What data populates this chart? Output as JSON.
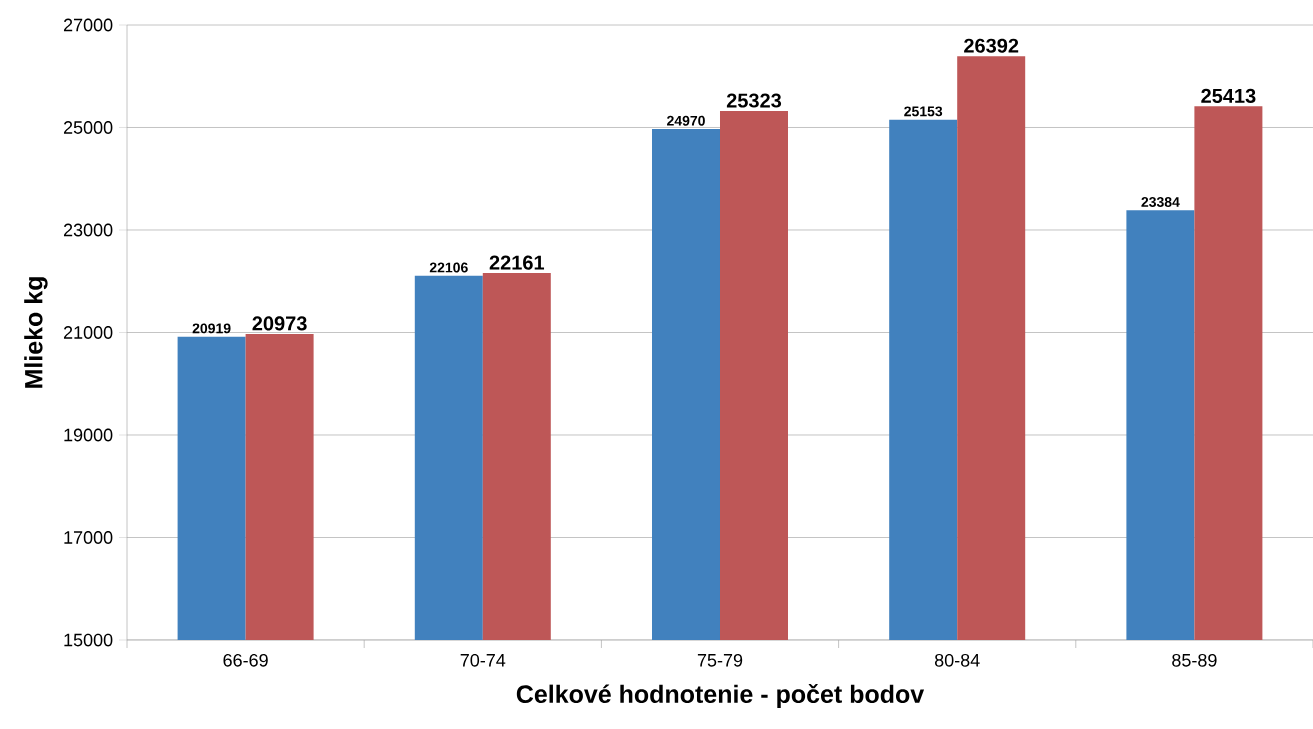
{
  "chart_data": {
    "type": "bar",
    "xlabel": "Celkové hodnotenie - počet bodov",
    "ylabel": "Mlieko kg",
    "categories": [
      "66-69",
      "70-74",
      "75-79",
      "80-84",
      "85-89"
    ],
    "series": [
      {
        "color": "#4181be",
        "values": [
          20919,
          22106,
          24970,
          25153,
          23384
        ]
      },
      {
        "color": "#be5757",
        "values": [
          20973,
          22161,
          25323,
          26392,
          25413
        ]
      }
    ],
    "ylim": [
      15000,
      27000
    ],
    "yticks": [
      15000,
      17000,
      19000,
      21000,
      23000,
      25000,
      27000
    ],
    "grid": "y",
    "data_labels": true
  }
}
